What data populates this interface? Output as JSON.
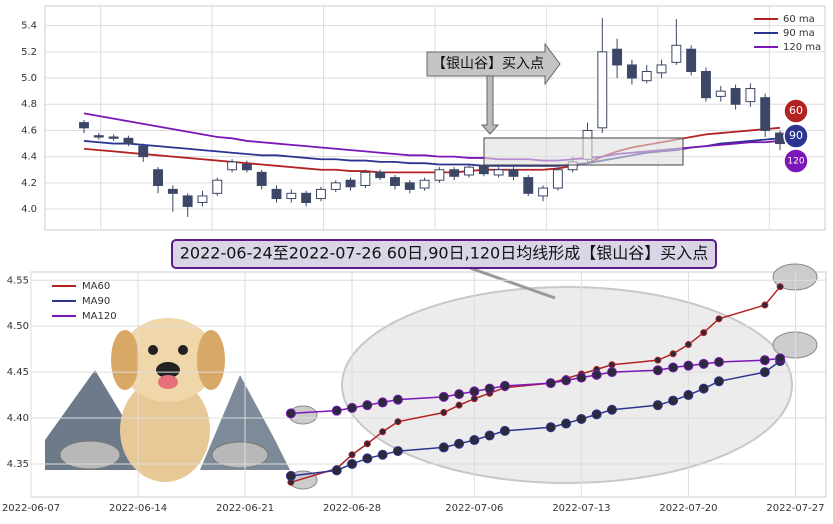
{
  "chart_data": [
    {
      "type": "candlestick",
      "annotation": "【银山谷】买入点",
      "badges": [
        "60",
        "90",
        "120"
      ],
      "open": [
        4.66,
        4.56,
        4.55,
        4.54,
        4.48,
        4.3,
        4.15,
        4.1,
        4.05,
        4.12,
        4.3,
        4.34,
        4.28,
        4.15,
        4.08,
        4.12,
        4.08,
        4.15,
        4.22,
        4.18,
        4.28,
        4.24,
        4.2,
        4.16,
        4.22,
        4.3,
        4.26,
        4.33,
        4.26,
        4.3,
        4.24,
        4.1,
        4.16,
        4.3,
        4.38,
        4.62,
        5.22,
        5.1,
        4.98,
        5.04,
        5.12,
        5.22,
        5.05,
        4.86,
        4.92,
        4.82,
        4.85,
        4.58
      ],
      "high": [
        4.68,
        4.58,
        4.57,
        4.56,
        4.5,
        4.32,
        4.18,
        4.12,
        4.14,
        4.24,
        4.38,
        4.37,
        4.3,
        4.18,
        4.15,
        4.14,
        4.17,
        4.22,
        4.24,
        4.3,
        4.3,
        4.26,
        4.22,
        4.24,
        4.32,
        4.32,
        4.34,
        4.35,
        4.32,
        4.32,
        4.26,
        4.18,
        4.32,
        4.4,
        4.66,
        5.46,
        5.3,
        5.14,
        5.1,
        5.14,
        5.45,
        5.25,
        5.08,
        4.94,
        4.95,
        4.96,
        4.88,
        4.6
      ],
      "low": [
        4.58,
        4.53,
        4.52,
        4.48,
        4.36,
        4.12,
        3.98,
        3.94,
        4.02,
        4.1,
        4.28,
        4.28,
        4.15,
        4.05,
        4.05,
        4.02,
        4.06,
        4.13,
        4.14,
        4.16,
        4.22,
        4.15,
        4.12,
        4.14,
        4.2,
        4.22,
        4.24,
        4.25,
        4.24,
        4.22,
        4.1,
        4.06,
        4.14,
        4.28,
        4.36,
        4.58,
        5.0,
        4.95,
        4.96,
        5.0,
        5.1,
        5.02,
        4.82,
        4.82,
        4.76,
        4.78,
        4.55,
        4.45
      ],
      "close": [
        4.62,
        4.55,
        4.54,
        4.5,
        4.4,
        4.18,
        4.12,
        4.02,
        4.1,
        4.22,
        4.36,
        4.3,
        4.18,
        4.08,
        4.12,
        4.05,
        4.15,
        4.2,
        4.17,
        4.28,
        4.24,
        4.18,
        4.15,
        4.22,
        4.3,
        4.25,
        4.32,
        4.27,
        4.3,
        4.25,
        4.12,
        4.16,
        4.3,
        4.36,
        4.6,
        5.2,
        5.1,
        5.0,
        5.05,
        5.1,
        5.25,
        5.05,
        4.85,
        4.9,
        4.8,
        4.92,
        4.6,
        4.5
      ],
      "series": [
        {
          "name": "60 ma",
          "color": "#b22222",
          "values": [
            4.46,
            4.45,
            4.44,
            4.43,
            4.42,
            4.41,
            4.4,
            4.39,
            4.38,
            4.37,
            4.36,
            4.35,
            4.34,
            4.33,
            4.32,
            4.31,
            4.3,
            4.3,
            4.29,
            4.29,
            4.28,
            4.28,
            4.28,
            4.28,
            4.28,
            4.28,
            4.29,
            4.3,
            4.3,
            4.3,
            4.3,
            4.3,
            4.31,
            4.33,
            4.35,
            4.4,
            4.44,
            4.47,
            4.49,
            4.51,
            4.53,
            4.55,
            4.57,
            4.58,
            4.59,
            4.6,
            4.61,
            4.62
          ]
        },
        {
          "name": "90 ma",
          "color": "#2b3590",
          "values": [
            4.52,
            4.51,
            4.5,
            4.5,
            4.49,
            4.48,
            4.47,
            4.46,
            4.45,
            4.44,
            4.43,
            4.42,
            4.41,
            4.41,
            4.4,
            4.39,
            4.38,
            4.38,
            4.37,
            4.37,
            4.36,
            4.36,
            4.35,
            4.35,
            4.34,
            4.34,
            4.34,
            4.33,
            4.33,
            4.33,
            4.33,
            4.33,
            4.33,
            4.34,
            4.35,
            4.37,
            4.39,
            4.41,
            4.43,
            4.44,
            4.45,
            4.47,
            4.48,
            4.5,
            4.51,
            4.52,
            4.53,
            4.54
          ]
        },
        {
          "name": "120 ma",
          "color": "#7b16b8",
          "values": [
            4.73,
            4.71,
            4.69,
            4.67,
            4.65,
            4.63,
            4.61,
            4.59,
            4.57,
            4.55,
            4.54,
            4.52,
            4.51,
            4.5,
            4.49,
            4.48,
            4.47,
            4.46,
            4.45,
            4.44,
            4.43,
            4.42,
            4.41,
            4.41,
            4.4,
            4.4,
            4.39,
            4.39,
            4.38,
            4.38,
            4.38,
            4.37,
            4.37,
            4.38,
            4.39,
            4.4,
            4.42,
            4.43,
            4.44,
            4.45,
            4.46,
            4.47,
            4.48,
            4.49,
            4.5,
            4.51,
            4.51,
            4.52
          ]
        }
      ],
      "up_color": "#ffffff",
      "down_color": "#3c4666",
      "ylim": [
        3.84,
        5.55
      ],
      "yticks": [
        {
          "value": 4.0,
          "label": "4.0"
        },
        4.2,
        4.4,
        4.6,
        4.8,
        {
          "value": 5.0,
          "label": "5.0"
        },
        5.2,
        5.4
      ],
      "grid": true
    },
    {
      "type": "line",
      "title": "2022-06-24至2022-07-26 60日,90日,120日均线形成【银山谷】买入点",
      "x": [
        "2022-06-24",
        "2022-06-27",
        "2022-06-28",
        "2022-06-29",
        "2022-06-30",
        "2022-07-01",
        "2022-07-04",
        "2022-07-05",
        "2022-07-06",
        "2022-07-07",
        "2022-07-08",
        "2022-07-11",
        "2022-07-12",
        "2022-07-13",
        "2022-07-14",
        "2022-07-15",
        "2022-07-18",
        "2022-07-19",
        "2022-07-20",
        "2022-07-21",
        "2022-07-22",
        "2022-07-25",
        "2022-07-26"
      ],
      "series": [
        {
          "name": "MA60",
          "color": "#b22222",
          "values": [
            4.33,
            4.345,
            4.36,
            4.372,
            4.385,
            4.396,
            4.406,
            4.414,
            4.421,
            4.427,
            4.433,
            4.438,
            4.443,
            4.448,
            4.453,
            4.458,
            4.463,
            4.47,
            4.48,
            4.493,
            4.508,
            4.523,
            4.543
          ]
        },
        {
          "name": "MA90",
          "color": "#2b3590",
          "values": [
            4.337,
            4.343,
            4.35,
            4.356,
            4.36,
            4.364,
            4.368,
            4.372,
            4.376,
            4.381,
            4.386,
            4.39,
            4.394,
            4.399,
            4.404,
            4.409,
            4.414,
            4.419,
            4.425,
            4.432,
            4.44,
            4.45,
            4.462
          ]
        },
        {
          "name": "MA120",
          "color": "#7b16b8",
          "values": [
            4.405,
            4.408,
            4.411,
            4.414,
            4.417,
            4.42,
            4.423,
            4.426,
            4.429,
            4.432,
            4.435,
            4.438,
            4.441,
            4.444,
            4.447,
            4.45,
            4.452,
            4.455,
            4.457,
            4.459,
            4.461,
            4.463,
            4.465
          ]
        }
      ],
      "xlim": [
        "2022-06-07",
        "2022-07-29"
      ],
      "xticks": [
        "2022-06-07",
        "2022-06-14",
        "2022-06-21",
        "2022-06-28",
        "2022-07-06",
        "2022-07-13",
        "2022-07-20",
        "2022-07-27"
      ],
      "ylim": [
        4.314,
        4.559
      ],
      "yticks": [
        4.35,
        {
          "value": 4.4,
          "label": "4.40"
        },
        4.45,
        {
          "value": 4.5,
          "label": "4.50"
        },
        4.55
      ],
      "grid": true
    }
  ]
}
